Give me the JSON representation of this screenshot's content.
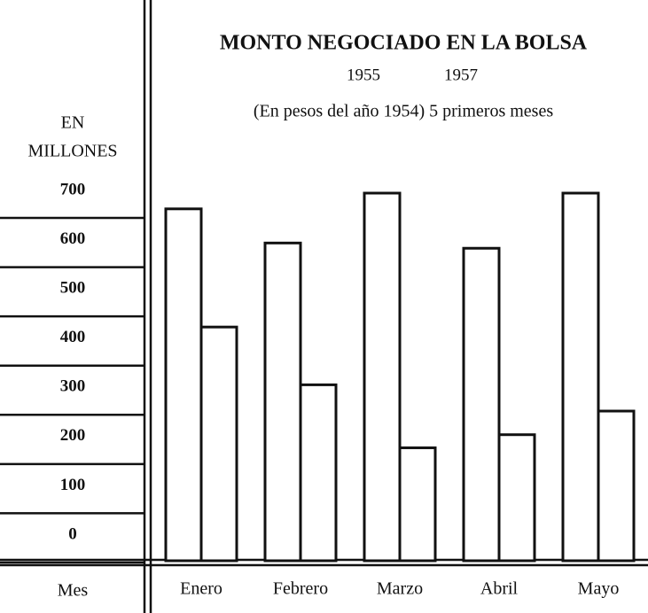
{
  "chart_data": {
    "type": "bar",
    "title": "MONTO NEGOCIADO EN LA BOLSA",
    "subtitle": "(En pesos del año 1954) 5 primeros meses",
    "y_label": [
      "EN",
      "MILLONES"
    ],
    "x_label": "Mes",
    "categories": [
      "Enero",
      "Febrero",
      "Marzo",
      "Abril",
      "Mayo"
    ],
    "series": [
      {
        "name": "1955",
        "color": "#ffffff",
        "values": [
          670,
          605,
          700,
          595,
          700
        ]
      },
      {
        "name": "1957",
        "color": "#ffffff",
        "values": [
          445,
          335,
          215,
          240,
          285
        ]
      }
    ],
    "ylim": [
      0,
      700
    ],
    "yticks": [
      0,
      100,
      200,
      300,
      400,
      500,
      600,
      700
    ]
  }
}
